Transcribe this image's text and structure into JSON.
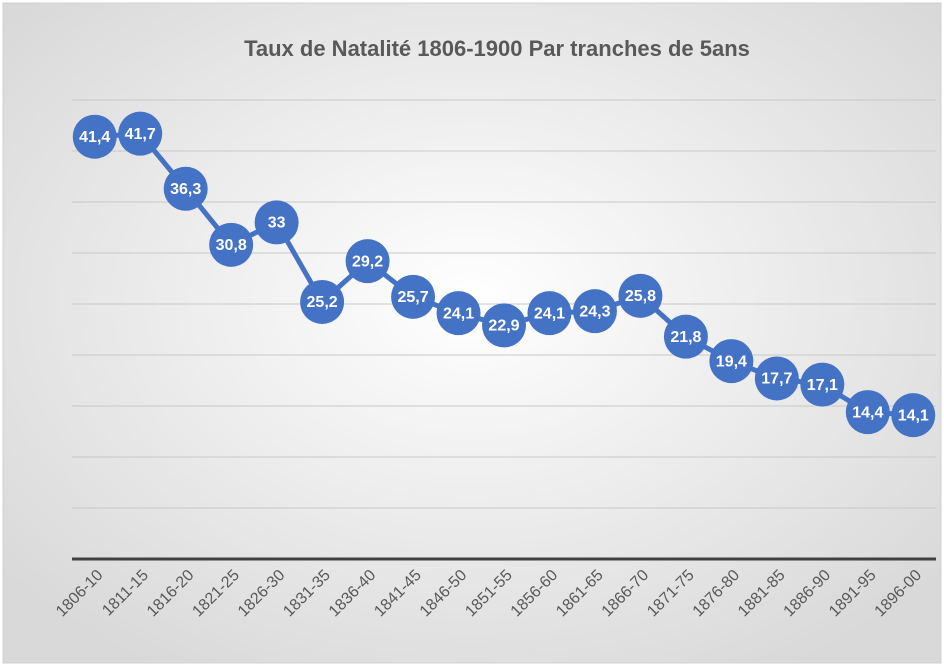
{
  "chart_data": {
    "type": "line",
    "title": "Taux de Natalité 1806-1900 Par tranches de 5ans",
    "categories": [
      "1806-10",
      "1811-15",
      "1816-20",
      "1821-25",
      "1826-30",
      "1831-35",
      "1836-40",
      "1841-45",
      "1846-50",
      "1851-55",
      "1856-60",
      "1861-65",
      "1866-70",
      "1871-75",
      "1876-80",
      "1881-85",
      "1886-90",
      "1891-95",
      "1896-00"
    ],
    "series": [
      {
        "color": "#4472c4",
        "values": [
          41.4,
          41.7,
          36.3,
          30.8,
          33,
          25.2,
          29.2,
          25.7,
          24.1,
          22.9,
          24.1,
          24.3,
          25.8,
          21.8,
          19.4,
          17.7,
          17.1,
          14.4,
          14.1
        ],
        "value_labels": [
          "41,4",
          "41,7",
          "36,3",
          "30,8",
          "33",
          "25,2",
          "29,2",
          "25,7",
          "24,1",
          "22,9",
          "24,1",
          "24,3",
          "25,8",
          "21,8",
          "19,4",
          "17,7",
          "17,1",
          "14,4",
          "14,1"
        ]
      }
    ],
    "ylim": [
      0,
      45
    ],
    "yticks": [
      0,
      5,
      10,
      15,
      20,
      25,
      30,
      35,
      40,
      45
    ],
    "grid": true
  }
}
